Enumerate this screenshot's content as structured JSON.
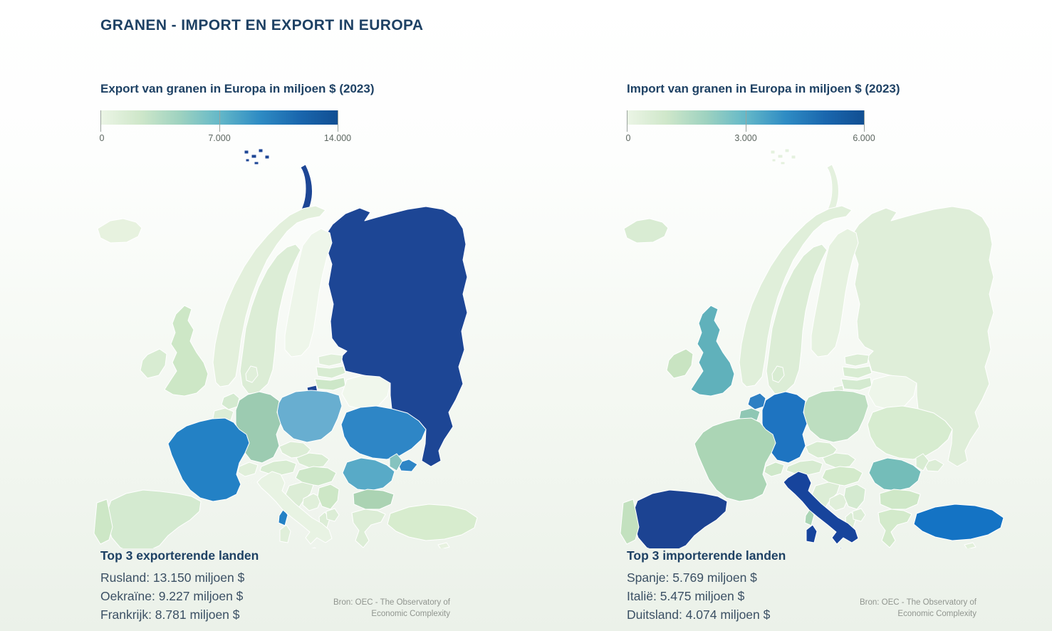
{
  "page": {
    "title": "GRANEN - IMPORT EN EXPORT IN EUROPA",
    "title_color": "#1e4164",
    "background_top": "#ffffff",
    "background_bottom": "#ebf1e9"
  },
  "color_scale": {
    "stops": [
      "#ecf5e6",
      "#cfe7ca",
      "#9ed2c0",
      "#64b8c8",
      "#2f8cc4",
      "#1a67ae",
      "#114e92"
    ],
    "tick_color": "#9aa39e"
  },
  "maps": {
    "default_fill": "#e7f2e0",
    "border_color": "#ffffff"
  },
  "export_panel": {
    "subtitle": "Export van granen in Europa in miljoen $ (2023)",
    "legend_ticks": [
      "0",
      "7.000",
      "14.000"
    ],
    "top3_heading": "Top 3 exporterende landen",
    "top3_lines": [
      "Rusland: 13.150 miljoen $",
      "Oekraïne: 9.227 miljoen $",
      "Frankrijk: 8.781 miljoen $"
    ],
    "source_line1": "Bron: OEC - The Observatory of",
    "source_line2": "Economic Complexity",
    "country_colors": {
      "russia": "#1d4695",
      "novaya_zemlya": "#1d4695",
      "svalbard": "#1d4695",
      "kaliningrad": "#1d4695",
      "ukraine": "#2e86c6",
      "crimea": "#2e86c6",
      "france": "#2381c5",
      "corsica": "#2381c5",
      "poland": "#68aed0",
      "romania": "#58aac7",
      "moldova": "#85c3bf",
      "germany": "#9ccbb1",
      "bulgaria": "#abd3b3",
      "hungary": "#cde7c8",
      "lithuania": "#cde7c8",
      "latvia": "#d8ecd2",
      "estonia": "#e0efda",
      "belarus": "#f0f7ec",
      "uk": "#cde7c6",
      "ireland": "#d8ecd2",
      "spain": "#d4ead0",
      "portugal": "#cde7c6",
      "italy": "#e8f3e3",
      "sicily": "#e8f3e3",
      "sardinia": "#e0efda",
      "netherlands": "#d4ead0",
      "belgium": "#dcedd6",
      "denmark": "#e0efda",
      "norway": "#e3f0dc",
      "sweden": "#dcedd6",
      "finland": "#eef6ea",
      "iceland": "#e7f2df",
      "switzerland": "#e0efda",
      "austria": "#d8ecd2",
      "czechia": "#dcedd6",
      "slovakia": "#d8ecd2",
      "croatia": "#dcedd6",
      "bosnia": "#e0efda",
      "serbia": "#cde7c6",
      "albania": "#dcedd6",
      "macedonia": "#dcedd6",
      "greece": "#dcedd6",
      "crete": "#e0efda",
      "cyprus": "#e7f2e0",
      "turkey": "#d7ecce"
    }
  },
  "import_panel": {
    "subtitle": "Import van granen in Europa in miljoen $ (2023)",
    "legend_ticks": [
      "0",
      "3.000",
      "6.000"
    ],
    "top3_heading": "Top 3 importerende landen",
    "top3_lines": [
      "Spanje: 5.769 miljoen $",
      "Italië: 5.475 miljoen $",
      "Duitsland: 4.074 miljoen $"
    ],
    "source_line1": "Bron: OEC - The Observatory of",
    "source_line2": "Economic Complexity",
    "country_colors": {
      "spain": "#1c4392",
      "italy": "#17449c",
      "sicily": "#17449c",
      "sardinia": "#17449c",
      "germany": "#1e74c1",
      "netherlands": "#2e80c3",
      "turkey": "#1473c4",
      "uk": "#60b1bb",
      "romania": "#74bdb9",
      "belgium": "#8fc7b4",
      "france": "#abd5b5",
      "corsica": "#abd5b5",
      "portugal": "#c3e1bf",
      "ireland": "#c9e4c2",
      "poland": "#bddec0",
      "greece": "#d3eacb",
      "crete": "#d8ecd2",
      "bulgaria": "#cfe8c8",
      "hungary": "#d3eacb",
      "ukraine": "#d7ecd0",
      "crimea": "#dcedd6",
      "moldova": "#d8ecd2",
      "russia": "#dfeed9",
      "novaya_zemlya": "#e4f1de",
      "svalbard": "#e4f1de",
      "kaliningrad": "#dfeed9",
      "belarus": "#eef6ea",
      "estonia": "#dcedd6",
      "latvia": "#d8ecd2",
      "lithuania": "#d4ead0",
      "norway": "#e0efda",
      "sweden": "#dcedd6",
      "finland": "#e6f2e0",
      "iceland": "#d9ecd3",
      "denmark": "#d8ecd2",
      "switzerland": "#cfe8ca",
      "austria": "#d7ebd1",
      "czechia": "#d8ecd2",
      "slovakia": "#d8ecd2",
      "croatia": "#dcedd6",
      "bosnia": "#e0efda",
      "serbia": "#d4ead0",
      "albania": "#dcedd6",
      "macedonia": "#dcedd6",
      "cyprus": "#e2f0db"
    }
  },
  "chart_data": [
    {
      "type": "heatmap",
      "subtype": "choropleth-europe-map",
      "title": "Export van granen in Europa in miljoen $ (2023)",
      "unit": "miljoen $",
      "year": 2023,
      "colorbar": {
        "min": 0,
        "mid": 7000,
        "max": 14000,
        "tick_labels": [
          "0",
          "7.000",
          "14.000"
        ]
      },
      "top3_heading": "Top 3 exporterende landen",
      "labeled_values": [
        {
          "name": "Rusland",
          "value": 13150
        },
        {
          "name": "Oekraïne",
          "value": 9227
        },
        {
          "name": "Frankrijk",
          "value": 8781
        }
      ],
      "source": "Bron: OEC - The Observatory of Economic Complexity",
      "legend_position": "top"
    },
    {
      "type": "heatmap",
      "subtype": "choropleth-europe-map",
      "title": "Import van granen in Europa in miljoen $ (2023)",
      "unit": "miljoen $",
      "year": 2023,
      "colorbar": {
        "min": 0,
        "mid": 3000,
        "max": 6000,
        "tick_labels": [
          "0",
          "3.000",
          "6.000"
        ]
      },
      "top3_heading": "Top 3 importerende landen",
      "labeled_values": [
        {
          "name": "Spanje",
          "value": 5769
        },
        {
          "name": "Italië",
          "value": 5475
        },
        {
          "name": "Duitsland",
          "value": 4074
        }
      ],
      "source": "Bron: OEC - The Observatory of Economic Complexity",
      "legend_position": "top"
    }
  ]
}
